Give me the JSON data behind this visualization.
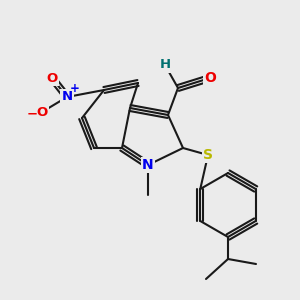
{
  "bg_color": "#ebebeb",
  "bond_color": "#1a1a1a",
  "bond_width": 1.5,
  "atom_colors": {
    "N": "#0000ee",
    "O": "#ee0000",
    "S": "#b8b800",
    "H": "#007070",
    "C": "#1a1a1a"
  },
  "font_size": 8.5
}
